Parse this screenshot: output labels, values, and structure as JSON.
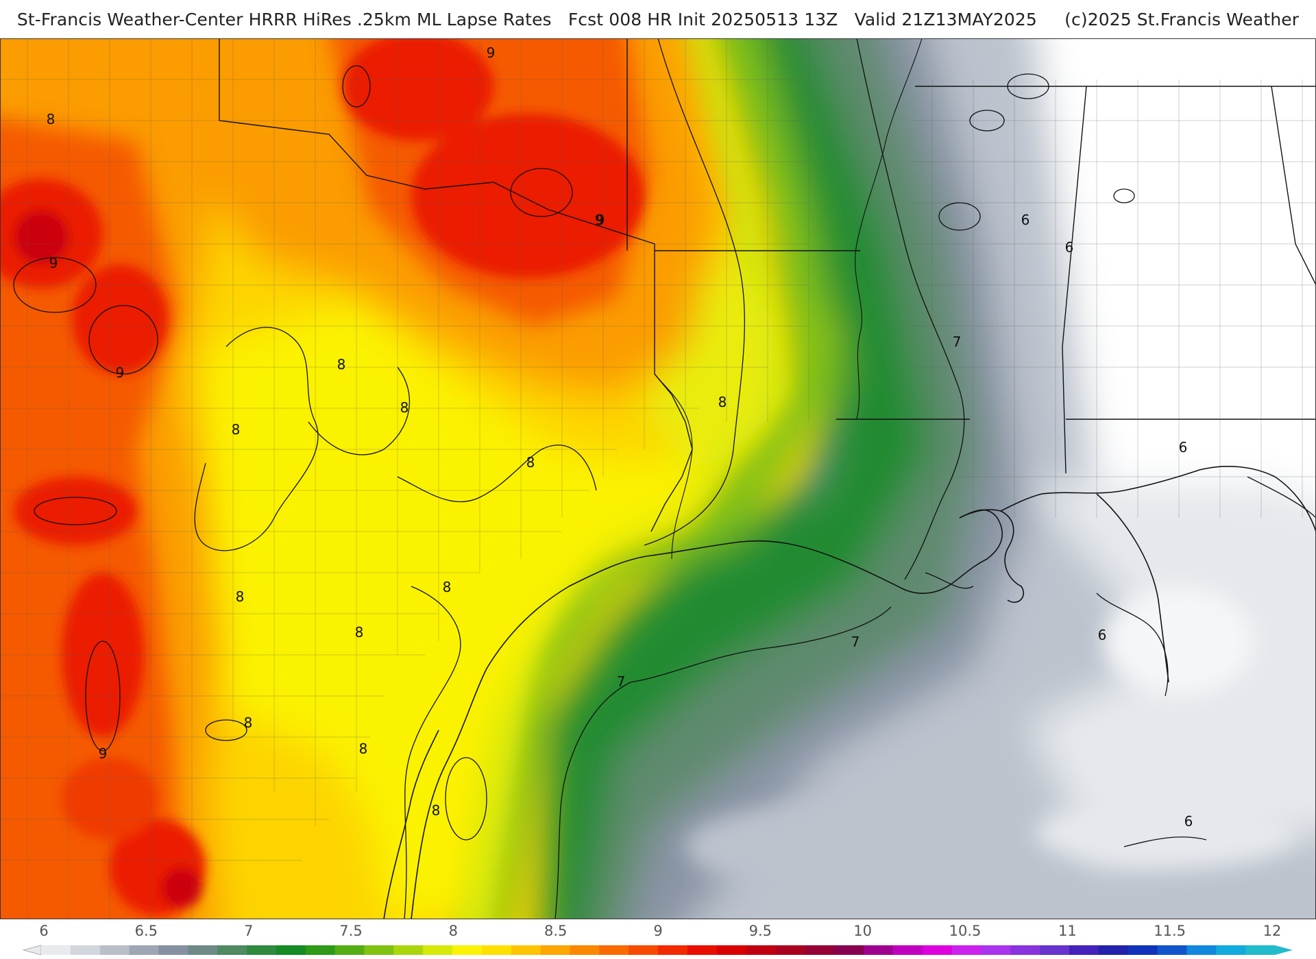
{
  "header": {
    "title": "St-Francis Weather-Center HRRR HiRes .25km ML Lapse Rates   Fcst 008 HR Init 20250513 13Z   Valid 21Z13MAY2025     (c)2025 St.Francis Weather"
  },
  "contour_labels": [
    "9",
    "8",
    "9",
    "9",
    "9",
    "9",
    "8",
    "8",
    "8",
    "8",
    "8",
    "8",
    "8",
    "8",
    "8",
    "8",
    "8",
    "9",
    "7",
    "7",
    "7",
    "6",
    "6",
    "6",
    "6",
    "6"
  ],
  "colorbar": {
    "ticks": [
      "6",
      "6.5",
      "7",
      "7.5",
      "8",
      "8.5",
      "9",
      "9.5",
      "10",
      "10.5",
      "11",
      "11.5",
      "12"
    ],
    "colors": [
      "#e8eaee",
      "#d2d6dd",
      "#b9bfc9",
      "#9ea6b3",
      "#8590a0",
      "#6e8a86",
      "#4f8a62",
      "#2f8a40",
      "#168a25",
      "#2e9a17",
      "#55ad14",
      "#80c210",
      "#acd60c",
      "#d7e909",
      "#fbf305",
      "#fde000",
      "#fdc400",
      "#fda600",
      "#fb8800",
      "#f86a00",
      "#f54a00",
      "#f22a00",
      "#e80f00",
      "#d80000",
      "#c00010",
      "#aa0020",
      "#950035",
      "#880050",
      "#a00090",
      "#c000c0",
      "#dd00dd",
      "#cc22ee",
      "#aa33ee",
      "#8833dd",
      "#6633cc",
      "#4422bb",
      "#2222aa",
      "#1133bb",
      "#1155cc",
      "#1188dd",
      "#11aadd",
      "#22bbcc"
    ]
  },
  "map_colors": {
    "gray_light": "#e5e8ec",
    "gray_mid": "#bcc3cd",
    "gray_dark": "#8a94a5",
    "green_gray": "#5f8a6e",
    "green": "#228b30",
    "green_bright": "#7ec112",
    "lime": "#cde50a",
    "yellow": "#fbf205",
    "gold": "#fdd400",
    "orange": "#fb9c00",
    "orange_red": "#f55a00",
    "red": "#eb1a00",
    "dark_red": "#cc0008",
    "land_white": "#ffffff"
  }
}
